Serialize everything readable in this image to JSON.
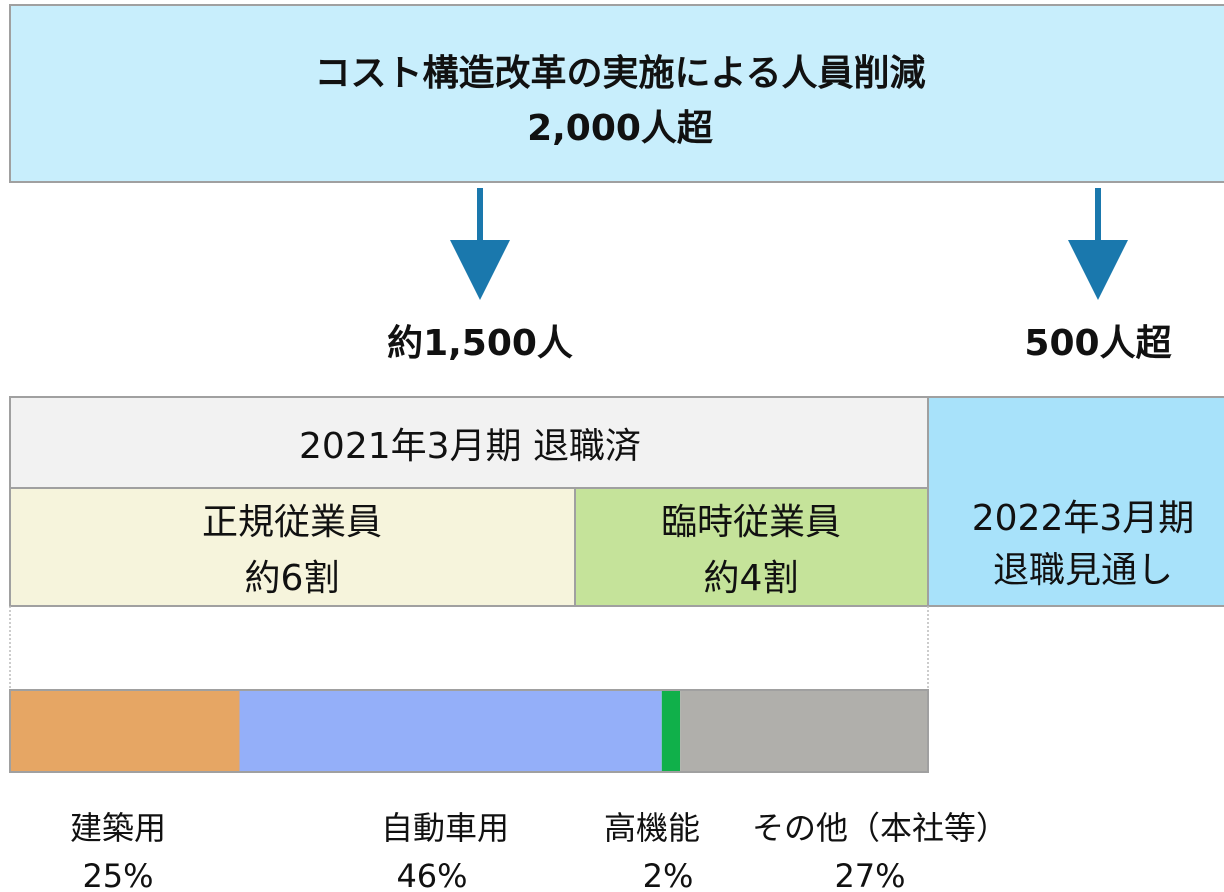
{
  "header": {
    "title": "コスト構造改革の実施による人員削減",
    "subtitle": "2,000人超"
  },
  "flows": [
    {
      "label": "約1,500人"
    },
    {
      "label": "500人超"
    }
  ],
  "retired": {
    "title": "2021年3月期 退職済",
    "regular": {
      "name": "正規従業員",
      "share": "約6割"
    },
    "temporary": {
      "name": "臨時従業員",
      "share": "約4割"
    }
  },
  "forecast": {
    "period": "2022年3月期",
    "status": "退職見通し"
  },
  "breakdown": {
    "categories": [
      "建築用",
      "自動車用",
      "高機能",
      "その他（本社等）"
    ],
    "values": [
      25,
      46,
      2,
      27
    ],
    "value_labels": [
      "25%",
      "46%",
      "2%",
      "27%"
    ],
    "colors": [
      "#e6a664",
      "#94aff9",
      "#10b04a",
      "#b0afab"
    ]
  }
}
